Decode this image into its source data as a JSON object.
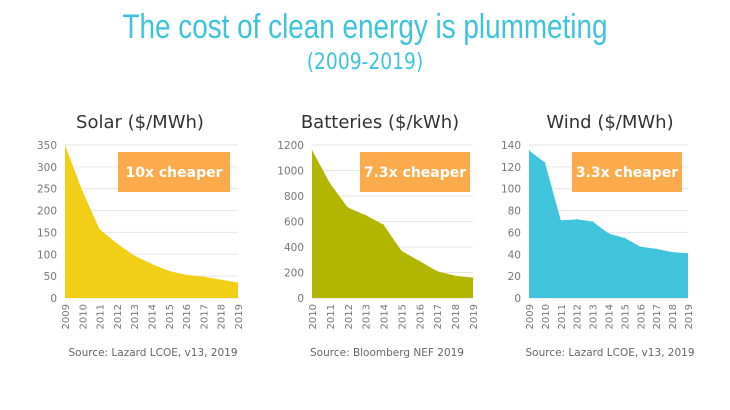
{
  "title": "The cost of clean energy is plummeting",
  "subtitle": "(2009-2019)",
  "colors": {
    "title": "#3ec3dc",
    "badge": "#fbab4b",
    "grid": "#e6e6e6",
    "tick": "#777777"
  },
  "chart_data": [
    {
      "type": "area",
      "title": "Solar ($/MWh)",
      "badge": "10x cheaper",
      "source": "Source: Lazard LCOE, v13, 2019",
      "color": "#f2cf17",
      "x": [
        "2009",
        "2010",
        "2011",
        "2012",
        "2013",
        "2014",
        "2015",
        "2016",
        "2017",
        "2018",
        "2019"
      ],
      "values": [
        350,
        245,
        157,
        125,
        97,
        78,
        62,
        53,
        49,
        42,
        35
      ],
      "ylim": [
        0,
        350
      ],
      "yticks": [
        0,
        50,
        100,
        150,
        200,
        250,
        300,
        350
      ],
      "grid": true
    },
    {
      "type": "area",
      "title": "Batteries ($/kWh)",
      "badge": "7.3x cheaper",
      "source": "Source: Bloomberg NEF 2019",
      "color": "#b2b600",
      "x": [
        "2010",
        "2011",
        "2012",
        "2013",
        "2014",
        "2015",
        "2016",
        "2017",
        "2018",
        "2019"
      ],
      "values": [
        1160,
        900,
        710,
        650,
        575,
        370,
        290,
        210,
        175,
        160
      ],
      "ylim": [
        0,
        1200
      ],
      "yticks": [
        0,
        200,
        400,
        600,
        800,
        1000,
        1200
      ],
      "grid": true
    },
    {
      "type": "area",
      "title": "Wind ($/MWh)",
      "badge": "3.3x cheaper",
      "source": "Source: Lazard LCOE, v13, 2019",
      "color": "#3fc4dc",
      "x": [
        "2009",
        "2010",
        "2011",
        "2012",
        "2013",
        "2014",
        "2015",
        "2016",
        "2017",
        "2018",
        "2019"
      ],
      "values": [
        135,
        124,
        71,
        72,
        70,
        59,
        55,
        47,
        45,
        42,
        41
      ],
      "ylim": [
        0,
        140
      ],
      "yticks": [
        0,
        20,
        40,
        60,
        80,
        100,
        120,
        140
      ],
      "grid": true
    }
  ]
}
